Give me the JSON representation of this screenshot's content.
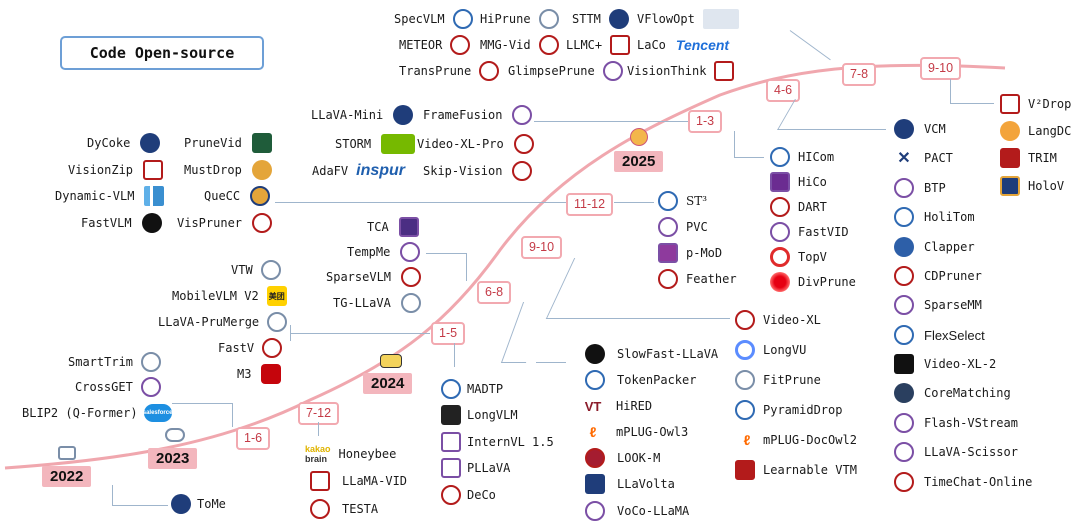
{
  "title": "Code Open-source",
  "years": {
    "y2022": "2022",
    "y2023": "2023",
    "y2024": "2024",
    "y2025": "2025"
  },
  "periods": {
    "p2023_1_6": "1-6",
    "p2023_7_12": "7-12",
    "p2024_1_5": "1-5",
    "p2024_6_8": "6-8",
    "p2024_9_10": "9-10",
    "p2024_11_12": "11-12",
    "p2025_1_3": "1-3",
    "p2025_4_6": "4-6",
    "p2025_7_8": "7-8",
    "p2025_9_10": "9-10"
  },
  "groups": {
    "g2022": [
      "ToMe"
    ],
    "g2023a": [
      "SmartTrim",
      "CrossGET",
      "BLIP2 (Q-Former)"
    ],
    "g2023b": [
      "Honeybee",
      "LLaMA-VID",
      "TESTA"
    ],
    "g2024a": [
      "VTW",
      "MobileVLM V2",
      "LLaVA-PruMerge",
      "FastV",
      "M3"
    ],
    "g2024a2": [
      "MADTP",
      "LongVLM",
      "InternVL 1.5",
      "PLLaVA",
      "DeCo"
    ],
    "g2024b": [
      "TCA",
      "TempMe",
      "SparseVLM",
      "TG-LLaVA"
    ],
    "g2024b2": [
      "SlowFast-LLaVA",
      "TokenPacker",
      "HiRED",
      "mPLUG-Owl3",
      "LOOK-M",
      "LLaVolta",
      "VoCo-LLaMA"
    ],
    "g2024c1": [
      "mPLUG-DocOwl2",
      "Learnable VTM"
    ],
    "g2024c2": [
      "Video-XL",
      "LongVU",
      "FitPrune",
      "PyramidDrop"
    ],
    "g2024d_left": [
      "DyCoke",
      "VisionZip",
      "Dynamic-VLM",
      "FastVLM"
    ],
    "g2024d_mid": [
      "PruneVid",
      "MustDrop",
      "QueCC",
      "VisPruner"
    ],
    "g2024d_right": [
      "ST³",
      "PVC",
      "p-MoD",
      "Feather"
    ],
    "g2025a_left": [
      "LLaVA-Mini",
      "STORM",
      "AdaFV"
    ],
    "g2025a_mid": [
      "FrameFusion",
      "Video-XL-Pro",
      "Skip-Vision"
    ],
    "g2025a_right": [
      "HICom",
      "HiCo",
      "DART",
      "FastVID",
      "TopV",
      "DivPrune"
    ],
    "g2025b": [
      "VCM",
      "PACT",
      "BTP",
      "HoliTom",
      "Clapper",
      "CDPruner",
      "SparseMM",
      "FlexSelect",
      "Video-XL-2",
      "CoreMatching",
      "Flash-VStream",
      "LLaVA-Scissor",
      "TimeChat-Online"
    ],
    "g2025c_left": [
      "SpecVLM",
      "METEOR",
      "TransPrune"
    ],
    "g2025c_mid": [
      "HiPrune",
      "MMG-Vid",
      "GlimpsePrune"
    ],
    "g2025c_right": [
      "STTM",
      "LLMC+",
      "VisionThink"
    ],
    "g2025c_far": [
      "VFlowOpt",
      "LaCo"
    ],
    "g2025d": [
      "V²Drop",
      "LangDC",
      "TRIM",
      "HoloV"
    ]
  },
  "brand_words": {
    "tencent": "Tencent",
    "inspur": "inspur",
    "kakao": "kakao",
    "brain": "brain",
    "salesforce": "salesforce",
    "meituan": "美团",
    "vt": "VT"
  },
  "colors": {
    "curve": "#f0a7ae",
    "year_bg": "#f3b6bd",
    "period_border": "#f2a9b0",
    "period_text": "#c43a46",
    "title_border": "#6d9fd6",
    "connector": "#9fb5cc"
  }
}
